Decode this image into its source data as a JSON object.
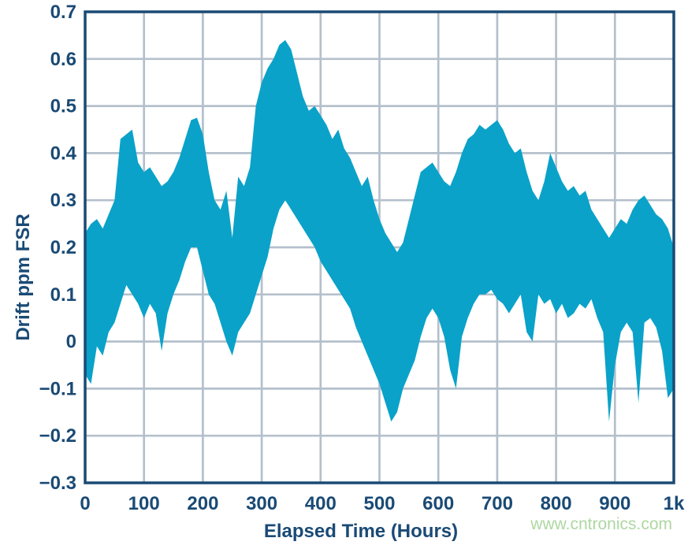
{
  "chart_data": {
    "type": "area",
    "title": "",
    "xlabel": "Elapsed Time (Hours)",
    "ylabel": "Drift ppm FSR",
    "xlim": [
      0,
      1000
    ],
    "ylim": [
      -0.3,
      0.7
    ],
    "grid": true,
    "legend": "none",
    "x_tick_values": [
      0,
      100,
      200,
      300,
      400,
      500,
      600,
      700,
      800,
      900,
      1000
    ],
    "x_tick_labels": [
      "0",
      "100",
      "200",
      "300",
      "400",
      "500",
      "600",
      "700",
      "800",
      "900",
      "1k"
    ],
    "y_tick_values": [
      0.7,
      0.6,
      0.5,
      0.4,
      0.3,
      0.2,
      0.1,
      0,
      -0.1,
      -0.2,
      -0.3
    ],
    "y_tick_labels": [
      "0.7",
      "0.6",
      "0.5",
      "0.4",
      "0.3",
      "0.2",
      "0.1",
      "0",
      "−0.1",
      "−0.2",
      "−0.3"
    ],
    "series": [
      {
        "name": "drift-noisy-trace",
        "color": "#0aa2c9",
        "style": "dense-noise-band",
        "envelope_hours": [
          0,
          10,
          20,
          30,
          40,
          50,
          60,
          70,
          80,
          90,
          100,
          110,
          120,
          130,
          140,
          150,
          160,
          170,
          180,
          190,
          200,
          210,
          220,
          230,
          240,
          250,
          260,
          270,
          280,
          290,
          300,
          310,
          320,
          330,
          340,
          350,
          360,
          370,
          380,
          390,
          400,
          410,
          420,
          430,
          440,
          450,
          460,
          470,
          480,
          490,
          500,
          510,
          520,
          530,
          540,
          550,
          560,
          570,
          580,
          590,
          600,
          610,
          620,
          630,
          640,
          650,
          660,
          670,
          680,
          690,
          700,
          710,
          720,
          730,
          740,
          750,
          760,
          770,
          780,
          790,
          800,
          810,
          820,
          830,
          840,
          850,
          860,
          870,
          880,
          890,
          900,
          910,
          920,
          930,
          940,
          950,
          960,
          970,
          980,
          990,
          1000
        ],
        "envelope_min": [
          -0.07,
          -0.09,
          -0.01,
          -0.03,
          0.02,
          0.04,
          0.08,
          0.12,
          0.1,
          0.08,
          0.05,
          0.08,
          0.06,
          -0.02,
          0.06,
          0.1,
          0.13,
          0.17,
          0.2,
          0.2,
          0.15,
          0.1,
          0.08,
          0.04,
          0.0,
          -0.03,
          0.02,
          0.04,
          0.06,
          0.1,
          0.14,
          0.18,
          0.24,
          0.28,
          0.3,
          0.28,
          0.26,
          0.24,
          0.22,
          0.2,
          0.17,
          0.15,
          0.13,
          0.11,
          0.09,
          0.07,
          0.03,
          0.0,
          -0.03,
          -0.06,
          -0.09,
          -0.13,
          -0.17,
          -0.15,
          -0.1,
          -0.07,
          -0.04,
          0.01,
          0.05,
          0.07,
          0.05,
          0.01,
          -0.06,
          -0.1,
          0.01,
          0.05,
          0.08,
          0.1,
          0.1,
          0.11,
          0.09,
          0.08,
          0.06,
          0.08,
          0.1,
          0.02,
          0.0,
          0.1,
          0.08,
          0.09,
          0.06,
          0.08,
          0.05,
          0.06,
          0.08,
          0.07,
          0.09,
          0.05,
          0.02,
          -0.17,
          -0.05,
          0.02,
          0.04,
          0.02,
          -0.13,
          0.04,
          0.05,
          0.03,
          -0.02,
          -0.12,
          -0.1
        ],
        "envelope_max": [
          0.23,
          0.25,
          0.26,
          0.24,
          0.27,
          0.3,
          0.43,
          0.44,
          0.45,
          0.38,
          0.36,
          0.37,
          0.35,
          0.33,
          0.34,
          0.36,
          0.39,
          0.43,
          0.47,
          0.475,
          0.44,
          0.36,
          0.3,
          0.28,
          0.32,
          0.22,
          0.35,
          0.33,
          0.37,
          0.5,
          0.55,
          0.58,
          0.6,
          0.63,
          0.64,
          0.62,
          0.57,
          0.52,
          0.49,
          0.5,
          0.48,
          0.46,
          0.43,
          0.45,
          0.41,
          0.39,
          0.36,
          0.33,
          0.35,
          0.3,
          0.26,
          0.23,
          0.21,
          0.19,
          0.21,
          0.26,
          0.31,
          0.36,
          0.37,
          0.38,
          0.36,
          0.34,
          0.33,
          0.36,
          0.4,
          0.43,
          0.44,
          0.46,
          0.45,
          0.46,
          0.47,
          0.45,
          0.42,
          0.4,
          0.41,
          0.36,
          0.32,
          0.3,
          0.34,
          0.4,
          0.37,
          0.34,
          0.32,
          0.33,
          0.31,
          0.32,
          0.28,
          0.26,
          0.24,
          0.22,
          0.24,
          0.26,
          0.25,
          0.28,
          0.3,
          0.31,
          0.29,
          0.27,
          0.26,
          0.24,
          0.2
        ]
      }
    ]
  },
  "colors": {
    "axis": "#1a4a75",
    "grid": "#b4c0cc",
    "background": "#ffffff",
    "trace": "#0aa2c9",
    "watermark": "#aed7a2"
  },
  "watermark": {
    "text": "www.cntronics.com"
  }
}
